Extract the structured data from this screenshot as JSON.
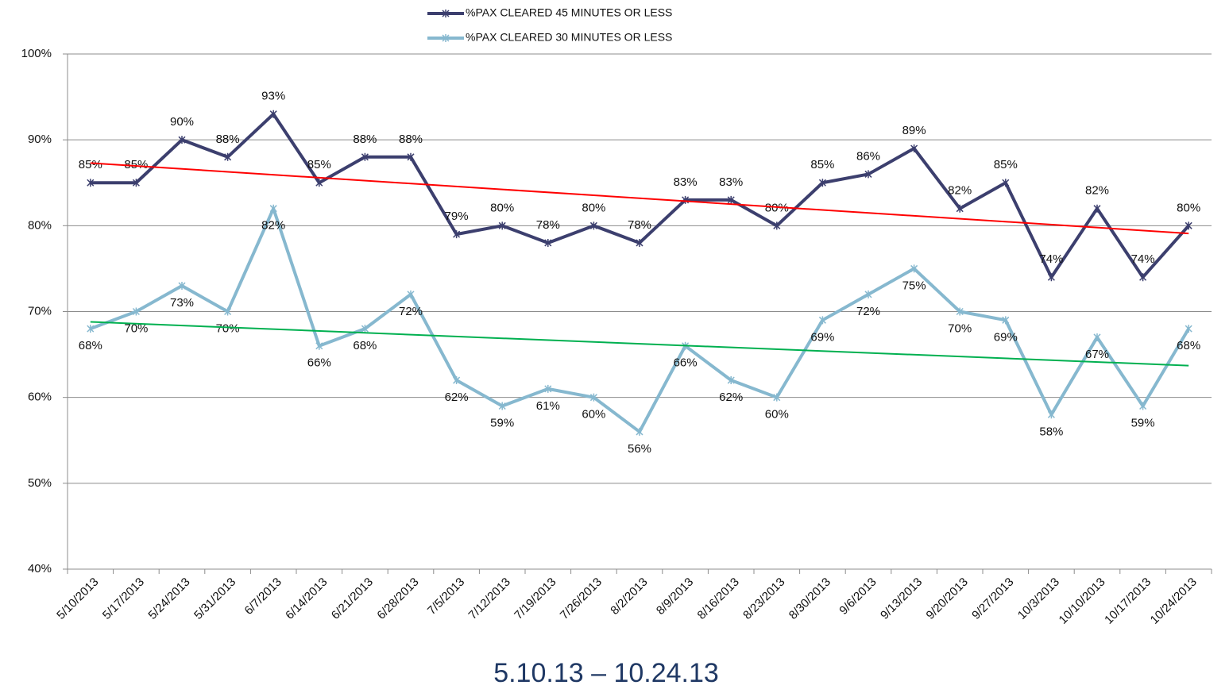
{
  "chart_data": {
    "type": "line",
    "subtitle": "5.10.13 – 10.24.13",
    "categories": [
      "5/10/2013",
      "5/17/2013",
      "5/24/2013",
      "5/31/2013",
      "6/7/2013",
      "6/14/2013",
      "6/21/2013",
      "6/28/2013",
      "7/5/2013",
      "7/12/2013",
      "7/19/2013",
      "7/26/2013",
      "8/2/2013",
      "8/9/2013",
      "8/16/2013",
      "8/23/2013",
      "8/30/2013",
      "9/6/2013",
      "9/13/2013",
      "9/20/2013",
      "9/27/2013",
      "10/3/2013",
      "10/10/2013",
      "10/17/2013",
      "10/24/2013"
    ],
    "series": [
      {
        "name": "%PAX CLEARED 45 MINUTES OR LESS",
        "color": "#3c3f6e",
        "values": [
          85,
          85,
          90,
          88,
          93,
          85,
          88,
          88,
          79,
          80,
          78,
          80,
          78,
          83,
          83,
          80,
          85,
          86,
          89,
          82,
          85,
          74,
          82,
          74,
          80
        ],
        "value_labels": [
          "85%",
          "85%",
          "90%",
          "88%",
          "93%",
          "85%",
          "88%",
          "88%",
          "79%",
          "80%",
          "78%",
          "80%",
          "78%",
          "83%",
          "83%",
          "80%",
          "85%",
          "86%",
          "89%",
          "82%",
          "85%",
          "74%",
          "82%",
          "74%",
          "80%"
        ],
        "trend": [
          87.3,
          79.1
        ],
        "trend_color": "#ff0000"
      },
      {
        "name": "%PAX CLEARED 30 MINUTES OR LESS",
        "color": "#86b8cf",
        "values": [
          68,
          70,
          73,
          70,
          82,
          66,
          68,
          72,
          62,
          59,
          61,
          60,
          56,
          66,
          62,
          60,
          69,
          72,
          75,
          70,
          69,
          58,
          67,
          59,
          68
        ],
        "value_labels": [
          "68%",
          "70%",
          "73%",
          "70%",
          "82%",
          "66%",
          "68%",
          "72%",
          "62%",
          "59%",
          "61%",
          "60%",
          "56%",
          "66%",
          "62%",
          "60%",
          "69%",
          "72%",
          "75%",
          "70%",
          "69%",
          "58%",
          "67%",
          "59%",
          "68%"
        ],
        "trend": [
          68.8,
          63.7
        ],
        "trend_color": "#00b050"
      }
    ],
    "ylim": [
      40,
      100
    ],
    "yticks": [
      {
        "value": 40,
        "label": "40%"
      },
      {
        "value": 50,
        "label": "50%"
      },
      {
        "value": 60,
        "label": "60%"
      },
      {
        "value": 70,
        "label": "70%"
      },
      {
        "value": 80,
        "label": "80%"
      },
      {
        "value": 90,
        "label": "90%"
      },
      {
        "value": 100,
        "label": "100%"
      }
    ],
    "grid": true
  }
}
